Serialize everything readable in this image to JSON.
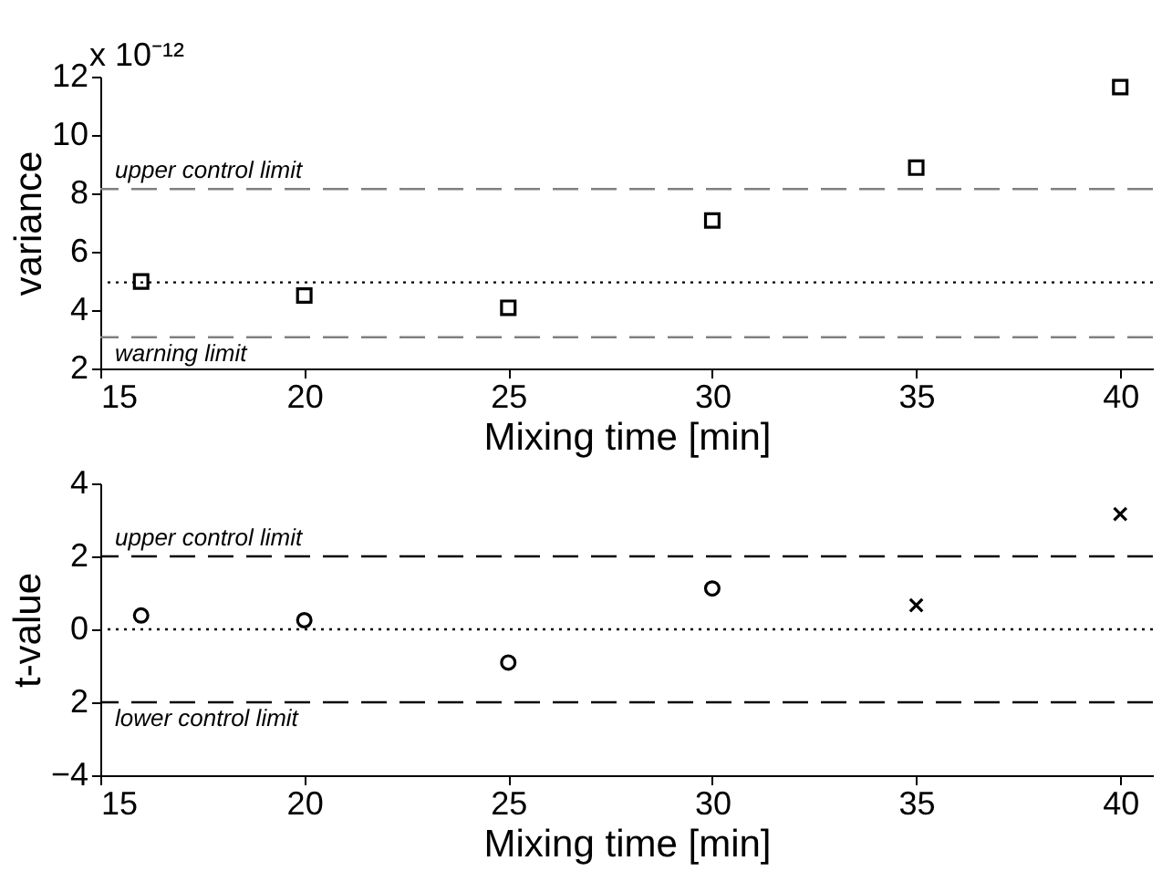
{
  "chart_data": [
    {
      "type": "scatter",
      "xlabel": "Mixing time [min]",
      "ylabel": "variance",
      "annotations": [
        "x 10⁻¹²"
      ],
      "x": [
        16,
        20,
        25,
        30,
        35,
        40
      ],
      "marker": "square",
      "series": [
        {
          "color": "#000000",
          "values": [
            4.98,
            4.5,
            4.08,
            7.07,
            8.88,
            11.64
          ]
        }
      ],
      "xlim": [
        15,
        40.8
      ],
      "xticks": [
        15,
        20,
        25,
        30,
        35,
        40
      ],
      "ylim": [
        2,
        12
      ],
      "yticks": [
        2,
        4,
        6,
        8,
        10,
        12
      ],
      "ref_lines": [
        {
          "axis": "y",
          "value": 8.15,
          "label": "upper control limit",
          "color": "#808080",
          "line_style": "dashed"
        },
        {
          "axis": "y",
          "value": 4.95,
          "color": "#000000",
          "line_style": "dotted"
        },
        {
          "axis": "y",
          "value": 3.07,
          "label": "warning limit",
          "color": "#808080",
          "line_style": "dashed"
        }
      ]
    },
    {
      "type": "scatter",
      "xlabel": "Mixing time [min]",
      "ylabel": "t-value",
      "series": [
        {
          "color": "#000000",
          "marker": "circle",
          "x": [
            16,
            20,
            25,
            30
          ],
          "values": [
            0.38,
            0.25,
            -0.91,
            1.12
          ]
        },
        {
          "color": "#000000",
          "marker": "cross",
          "x": [
            35,
            40
          ],
          "values": [
            0.66,
            3.16
          ]
        }
      ],
      "xlim": [
        15,
        40.8
      ],
      "xticks": [
        15,
        20,
        25,
        30,
        35,
        40
      ],
      "ylim": [
        -4,
        4
      ],
      "yticks": [
        -4,
        {
          "value": -2,
          "label": "2"
        },
        0,
        2,
        4
      ],
      "ref_lines": [
        {
          "axis": "y",
          "value": 2,
          "label": "upper control limit",
          "color": "#000000",
          "line_style": "dashed"
        },
        {
          "axis": "y",
          "value": 0,
          "color": "#000000",
          "line_style": "dotted"
        },
        {
          "axis": "y",
          "value": -2,
          "label": "lower control limit",
          "color": "#000000",
          "line_style": "dashed"
        }
      ]
    }
  ]
}
